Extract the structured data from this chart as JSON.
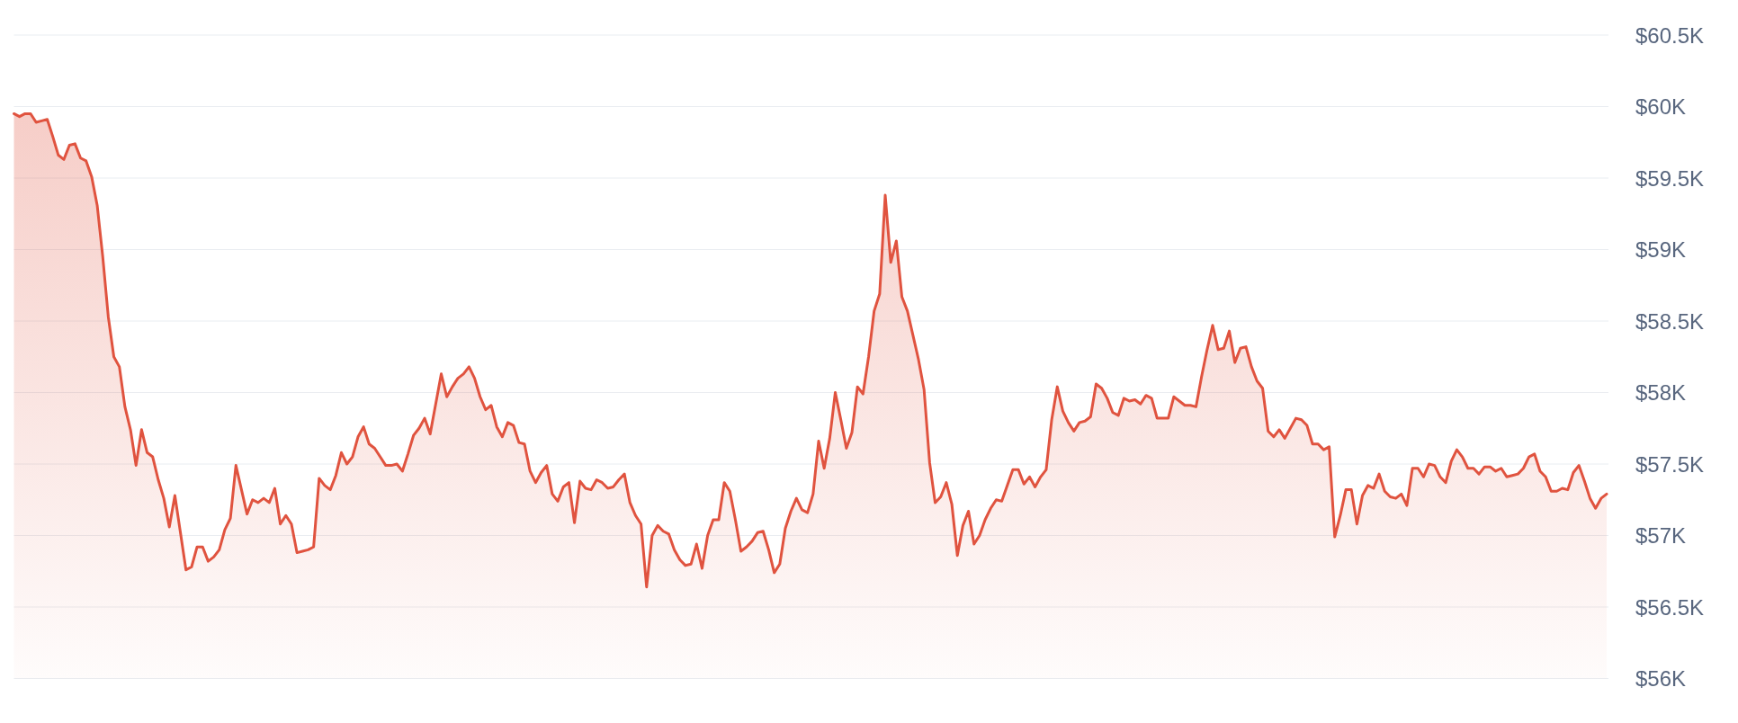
{
  "chart_data": {
    "type": "area",
    "color": "#e0533f",
    "categories": [
      null,
      null,
      null,
      null,
      null,
      null,
      null,
      null,
      null,
      null,
      null,
      null,
      null,
      null,
      null,
      null,
      null,
      null,
      null,
      null,
      null,
      null,
      null,
      null,
      null,
      null,
      null,
      null,
      null,
      null,
      null,
      null,
      null,
      null,
      null,
      null,
      null,
      null,
      null,
      null,
      null,
      null,
      null,
      null,
      null,
      null,
      null,
      null,
      null,
      null,
      null,
      null,
      null,
      null,
      null,
      null,
      null,
      null,
      null,
      null,
      null,
      null,
      null,
      null,
      null,
      null,
      null,
      null,
      null,
      null,
      null,
      null,
      null,
      null,
      null,
      null,
      null,
      null,
      null,
      null,
      null,
      null,
      null,
      null,
      null,
      null,
      null,
      null,
      null,
      null,
      null,
      null,
      null,
      null,
      null,
      null,
      null,
      null,
      null,
      null,
      null,
      null,
      null,
      null,
      null,
      null,
      null,
      null,
      null,
      null,
      null,
      null,
      null,
      null,
      null,
      null,
      null,
      null,
      null,
      null,
      null,
      null,
      null,
      null,
      null,
      null,
      null,
      null,
      null,
      null,
      null,
      null,
      null,
      null,
      null,
      null,
      null,
      null,
      null,
      null,
      null,
      null,
      null,
      null,
      null,
      null,
      null,
      null,
      null,
      null,
      null,
      null,
      null,
      null,
      null,
      null,
      null,
      null,
      null,
      null,
      null,
      null,
      null,
      null,
      null,
      null,
      null,
      null,
      null,
      null,
      null,
      null,
      null,
      null,
      null,
      null,
      null,
      null,
      null,
      null,
      null,
      null,
      null,
      null,
      null,
      null,
      null,
      null,
      null,
      null,
      null,
      null,
      null,
      null,
      null,
      null,
      null,
      null,
      null,
      null,
      null,
      null,
      null,
      null,
      null,
      null,
      null,
      null,
      null,
      null,
      null,
      null,
      null,
      null,
      null,
      null,
      null,
      null,
      null,
      null,
      null,
      null,
      null,
      null,
      null,
      null,
      null,
      null,
      null,
      null,
      null,
      null,
      null,
      null,
      null,
      null,
      null,
      null,
      null,
      null,
      null,
      null,
      null,
      null,
      null,
      null,
      null,
      null,
      null,
      null,
      null,
      null,
      null,
      null,
      null,
      null,
      null,
      null,
      null,
      null,
      null,
      null,
      null,
      null,
      null,
      null,
      null,
      null,
      null,
      null,
      null,
      null,
      null,
      null,
      null,
      null,
      null,
      null,
      null,
      null,
      null,
      null,
      null,
      null,
      null,
      null,
      null,
      null
    ],
    "values": [
      59950,
      59930,
      59950,
      59950,
      59890,
      59900,
      59910,
      59790,
      59660,
      59630,
      59730,
      59740,
      59640,
      59620,
      59510,
      59310,
      58950,
      58530,
      58250,
      58180,
      57900,
      57740,
      57490,
      57740,
      57580,
      57550,
      57390,
      57260,
      57060,
      57280,
      57020,
      56760,
      56780,
      56920,
      56920,
      56820,
      56850,
      56900,
      57040,
      57120,
      57490,
      57320,
      57150,
      57250,
      57230,
      57260,
      57230,
      57330,
      57080,
      57140,
      57080,
      56880,
      56890,
      56900,
      56920,
      57400,
      57350,
      57320,
      57420,
      57580,
      57500,
      57550,
      57690,
      57760,
      57640,
      57610,
      57550,
      57490,
      57490,
      57500,
      57450,
      57570,
      57700,
      57750,
      57820,
      57710,
      57920,
      58130,
      57970,
      58040,
      58100,
      58130,
      58180,
      58100,
      57970,
      57880,
      57910,
      57760,
      57690,
      57790,
      57770,
      57650,
      57640,
      57450,
      57370,
      57440,
      57490,
      57290,
      57240,
      57340,
      57370,
      57090,
      57380,
      57330,
      57320,
      57390,
      57370,
      57330,
      57340,
      57390,
      57430,
      57230,
      57140,
      57080,
      56640,
      57000,
      57070,
      57030,
      57010,
      56900,
      56830,
      56790,
      56800,
      56940,
      56770,
      57000,
      57110,
      57110,
      57370,
      57310,
      57110,
      56890,
      56920,
      56960,
      57020,
      57030,
      56900,
      56740,
      56800,
      57050,
      57170,
      57260,
      57180,
      57160,
      57290,
      57660,
      57470,
      57680,
      58000,
      57810,
      57610,
      57720,
      58040,
      57990,
      58250,
      58570,
      58690,
      59380,
      58910,
      59060,
      58670,
      58570,
      58400,
      58230,
      58020,
      57510,
      57230,
      57270,
      57370,
      57220,
      56860,
      57070,
      57170,
      56940,
      57000,
      57110,
      57190,
      57250,
      57240,
      57350,
      57460,
      57460,
      57360,
      57410,
      57340,
      57410,
      57460,
      57810,
      58040,
      57870,
      57790,
      57730,
      57790,
      57800,
      57830,
      58060,
      58030,
      57960,
      57860,
      57840,
      57960,
      57940,
      57950,
      57920,
      57980,
      57960,
      57820,
      57820,
      57820,
      57970,
      57940,
      57910,
      57910,
      57900,
      58110,
      58300,
      58470,
      58300,
      58310,
      58430,
      58210,
      58310,
      58320,
      58180,
      58080,
      58030,
      57730,
      57690,
      57740,
      57680,
      57750,
      57820,
      57810,
      57770,
      57640,
      57640,
      57600,
      57620,
      56990,
      57140,
      57320,
      57320,
      57080,
      57280,
      57350,
      57330,
      57430,
      57310,
      57270,
      57260,
      57290,
      57210,
      57470,
      57470,
      57410,
      57500,
      57490,
      57410,
      57370,
      57520,
      57600,
      57550,
      57470,
      57470,
      57430,
      57480,
      57480,
      57450,
      57470,
      57410,
      57420,
      57430,
      57470,
      57550,
      57570,
      57450,
      57410,
      57310,
      57310,
      57330,
      57320,
      57440,
      57490,
      57380,
      57260,
      57190,
      57260,
      57290
    ],
    "ylim": [
      56000,
      60500
    ],
    "yticks": [
      {
        "value": 56000,
        "label": "$56K"
      },
      {
        "value": 56500,
        "label": "$56.5K"
      },
      {
        "value": 57000,
        "label": "$57K"
      },
      {
        "value": 57500,
        "label": "$57.5K"
      },
      {
        "value": 58000,
        "label": "$58K"
      },
      {
        "value": 58500,
        "label": "$58.5K"
      },
      {
        "value": 59000,
        "label": "$59K"
      },
      {
        "value": 59500,
        "label": "$59.5K"
      },
      {
        "value": 60000,
        "label": "$60K"
      },
      {
        "value": 60500,
        "label": "$60.5K"
      }
    ],
    "grid": "y",
    "tick_labels": "y"
  }
}
